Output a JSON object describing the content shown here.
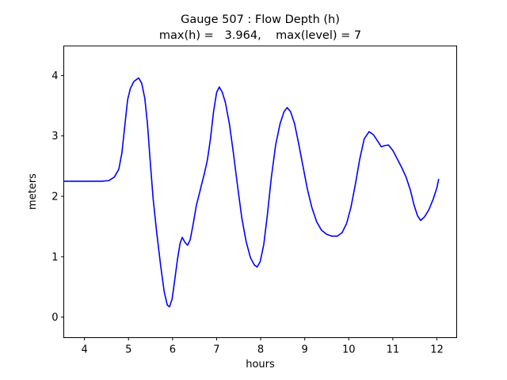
{
  "figure": {
    "title_line1": "Gauge 507 : Flow Depth (h)",
    "title_line2": "max(h) =   3.964,    max(level) = 7",
    "xlabel": "hours",
    "ylabel": "meters",
    "background_color": "#ffffff",
    "axis_color": "#000000",
    "line_color": "#0000ff"
  },
  "chart_data": {
    "type": "line",
    "title": "Gauge 507 : Flow Depth (h)",
    "subtitle": "max(h) =   3.964,    max(level) = 7",
    "xlabel": "hours",
    "ylabel": "meters",
    "xlim": [
      3.53,
      12.45
    ],
    "ylim": [
      -0.34,
      4.49
    ],
    "xticks": [
      4,
      5,
      6,
      7,
      8,
      9,
      10,
      11,
      12
    ],
    "yticks": [
      0,
      1,
      2,
      3,
      4
    ],
    "grid": false,
    "legend_position": "none",
    "annotations": {
      "max_h": 3.964,
      "max_level": 7
    },
    "series": [
      {
        "name": "flow-depth-h",
        "color": "#0000ff",
        "x": [
          3.53,
          3.8,
          4.1,
          4.4,
          4.55,
          4.68,
          4.78,
          4.85,
          4.92,
          4.98,
          5.04,
          5.12,
          5.23,
          5.3,
          5.37,
          5.43,
          5.49,
          5.56,
          5.64,
          5.73,
          5.81,
          5.88,
          5.93,
          5.99,
          6.05,
          6.11,
          6.17,
          6.22,
          6.28,
          6.34,
          6.4,
          6.47,
          6.54,
          6.61,
          6.66,
          6.72,
          6.79,
          6.86,
          6.93,
          7.0,
          7.06,
          7.13,
          7.2,
          7.29,
          7.38,
          7.47,
          7.57,
          7.67,
          7.77,
          7.86,
          7.92,
          7.99,
          8.07,
          8.15,
          8.24,
          8.34,
          8.44,
          8.53,
          8.6,
          8.68,
          8.77,
          8.86,
          8.96,
          9.06,
          9.16,
          9.27,
          9.38,
          9.5,
          9.62,
          9.74,
          9.85,
          9.95,
          10.05,
          10.15,
          10.25,
          10.35,
          10.46,
          10.56,
          10.65,
          10.74,
          10.82,
          10.9,
          11.0,
          11.1,
          11.2,
          11.3,
          11.4,
          11.48,
          11.56,
          11.63,
          11.72,
          11.82,
          11.92,
          12.0,
          12.04
        ],
        "y": [
          2.25,
          2.25,
          2.25,
          2.25,
          2.26,
          2.32,
          2.45,
          2.72,
          3.2,
          3.6,
          3.78,
          3.9,
          3.96,
          3.87,
          3.62,
          3.2,
          2.6,
          1.95,
          1.4,
          0.85,
          0.42,
          0.2,
          0.17,
          0.3,
          0.62,
          0.95,
          1.22,
          1.32,
          1.24,
          1.19,
          1.28,
          1.55,
          1.85,
          2.05,
          2.2,
          2.37,
          2.6,
          2.95,
          3.4,
          3.72,
          3.81,
          3.72,
          3.55,
          3.2,
          2.72,
          2.2,
          1.65,
          1.25,
          0.98,
          0.86,
          0.83,
          0.92,
          1.2,
          1.68,
          2.3,
          2.85,
          3.2,
          3.4,
          3.47,
          3.4,
          3.2,
          2.88,
          2.5,
          2.12,
          1.82,
          1.58,
          1.44,
          1.37,
          1.34,
          1.34,
          1.4,
          1.55,
          1.82,
          2.2,
          2.62,
          2.95,
          3.07,
          3.02,
          2.92,
          2.82,
          2.84,
          2.85,
          2.76,
          2.62,
          2.48,
          2.32,
          2.1,
          1.86,
          1.68,
          1.6,
          1.66,
          1.78,
          1.96,
          2.14,
          2.28
        ]
      }
    ]
  }
}
